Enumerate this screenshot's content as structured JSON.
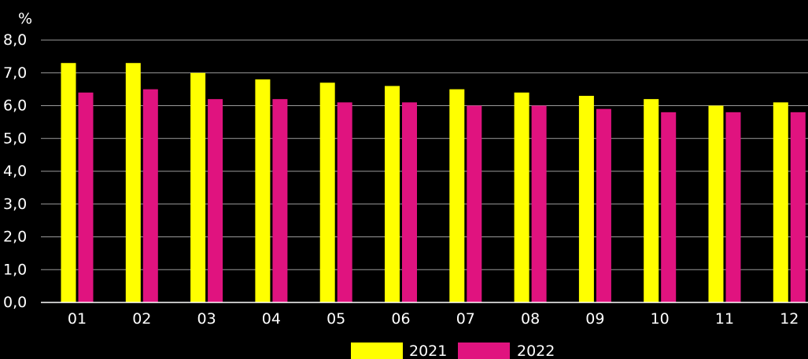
{
  "chart_data": {
    "type": "bar",
    "unit_label": "%",
    "categories": [
      "01",
      "02",
      "03",
      "04",
      "05",
      "06",
      "07",
      "08",
      "09",
      "10",
      "11",
      "12"
    ],
    "series": [
      {
        "name": "2021",
        "color": "#FFFF00",
        "values": [
          7.3,
          7.3,
          7.0,
          6.8,
          6.7,
          6.6,
          6.5,
          6.4,
          6.3,
          6.2,
          6.0,
          6.1
        ]
      },
      {
        "name": "2022",
        "color": "#E0137F",
        "values": [
          6.4,
          6.5,
          6.2,
          6.2,
          6.1,
          6.1,
          6.0,
          6.0,
          5.9,
          5.8,
          5.8,
          5.8
        ]
      }
    ],
    "ylim": [
      0,
      8
    ],
    "yticks": [
      "0,0",
      "1,0",
      "2,0",
      "3,0",
      "4,0",
      "5,0",
      "6,0",
      "7,0",
      "8,0"
    ],
    "grid": true,
    "legend_position": "bottom-center",
    "background": "#000000",
    "text_color": "#FFFFFF"
  }
}
